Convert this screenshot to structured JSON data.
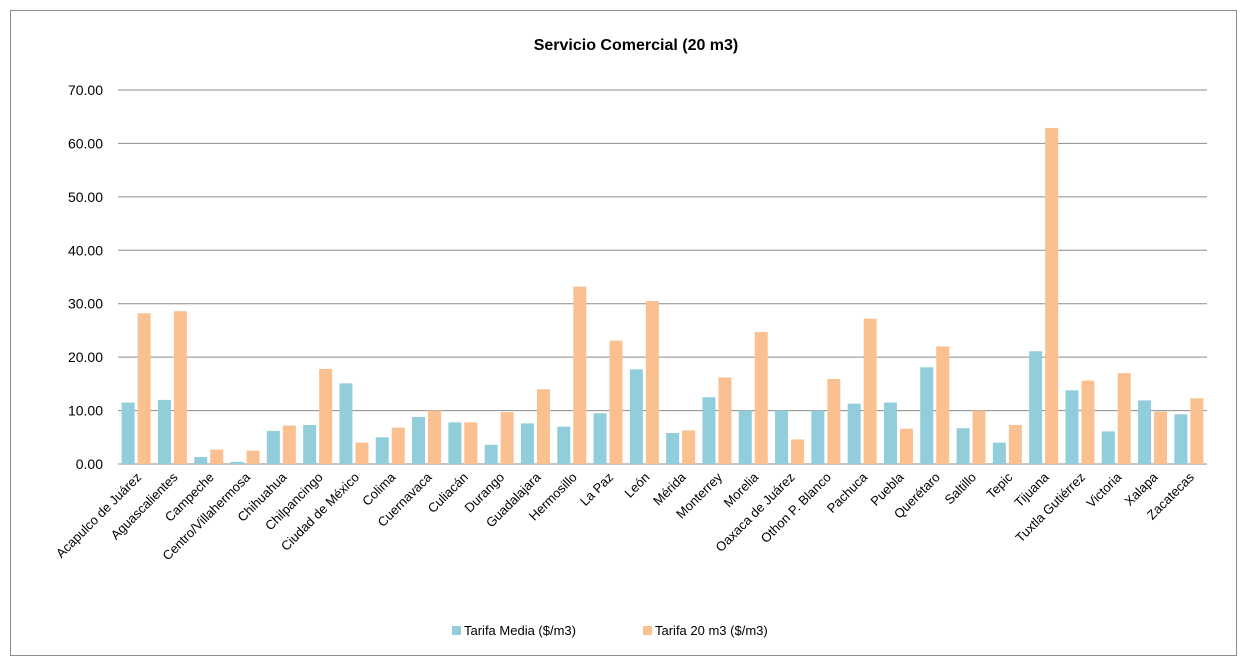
{
  "chart_data": {
    "type": "bar",
    "title": "Servicio Comercial (20 m3)",
    "xlabel": "",
    "ylabel": "",
    "ylim": [
      0,
      70
    ],
    "yticks": [
      "0.00",
      "10.00",
      "20.00",
      "30.00",
      "40.00",
      "50.00",
      "60.00",
      "70.00"
    ],
    "grid": true,
    "legend_position": "bottom",
    "categories": [
      "Acapulco de Juárez",
      "Aguascalientes",
      "Campeche",
      "Centro/Villahermosa",
      "Chihuahua",
      "Chilpancingo",
      "Ciudad de México",
      "Colima",
      "Cuernavaca",
      "Culiacán",
      "Durango",
      "Guadalajara",
      "Hermosillo",
      "La Paz",
      "León",
      "Mérida",
      "Monterrey",
      "Morelia",
      "Oaxaca de Juárez",
      "Othon P. Blanco",
      "Pachuca",
      "Puebla",
      "Querétaro",
      "Saltillo",
      "Tepic",
      "Tijuana",
      "Tuxtla Gutiérrez",
      "Victoria",
      "Xalapa",
      "Zacatecas"
    ],
    "series": [
      {
        "name": "Tarifa Media ($/m3)",
        "color": "#92CDDC",
        "values": [
          11.5,
          12.0,
          1.3,
          0.4,
          6.2,
          7.3,
          15.1,
          5.0,
          8.8,
          7.8,
          3.6,
          7.6,
          7.0,
          9.5,
          17.7,
          5.8,
          12.5,
          10.0,
          10.0,
          10.0,
          11.3,
          11.5,
          18.1,
          6.7,
          4.0,
          21.1,
          13.8,
          6.1,
          11.9,
          9.3
        ]
      },
      {
        "name": "Tarifa  20 m3 ($/m3)",
        "color": "#FAC090",
        "values": [
          28.2,
          28.6,
          2.7,
          2.5,
          7.2,
          17.8,
          4.0,
          6.8,
          10.0,
          7.8,
          9.7,
          14.0,
          33.2,
          23.1,
          30.5,
          6.3,
          16.2,
          24.7,
          4.6,
          15.9,
          27.2,
          6.6,
          22.0,
          10.0,
          7.3,
          62.9,
          15.6,
          17.0,
          9.8,
          12.3
        ]
      }
    ]
  }
}
